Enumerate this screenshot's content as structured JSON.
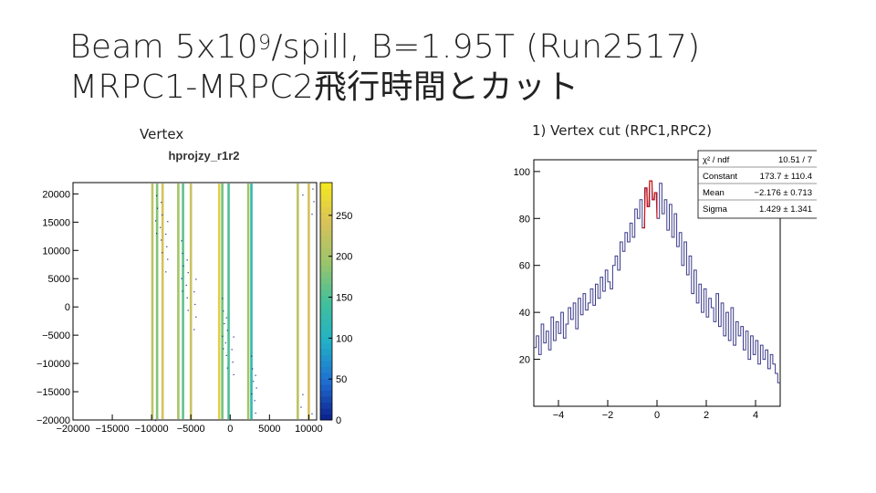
{
  "slide": {
    "title_line1_pre": "Beam 5x10",
    "title_line1_sup": "9",
    "title_line1_post": "/spill, B=1.95T (Run2517)",
    "title_line2": "MRPC1-MRPC2飛行時間とカット",
    "caption_left": "Vertex",
    "caption_right": "1) Vertex cut (RPC1,RPC2)"
  },
  "chart_data": [
    {
      "type": "heatmap",
      "title": "hprojzy_r1r2",
      "xlim": [
        -20000,
        11000
      ],
      "ylim": [
        -20000,
        22000
      ],
      "x_ticks": [
        "−20000",
        "−15000",
        "−10000",
        "−5000",
        "0",
        "5000",
        "10000"
      ],
      "x_tick_values": [
        -20000,
        -15000,
        -10000,
        -5000,
        0,
        5000,
        10000
      ],
      "y_ticks": [
        "20000",
        "15000",
        "10000",
        "5000",
        "0",
        "−5000",
        "−10000",
        "−15000",
        "−20000"
      ],
      "y_tick_values": [
        20000,
        15000,
        10000,
        5000,
        0,
        -5000,
        -10000,
        -15000,
        -20000
      ],
      "z_range": [
        0,
        290
      ],
      "z_ticks": [
        "250",
        "200",
        "150",
        "100",
        "50",
        "0"
      ],
      "z_tick_values": [
        250,
        200,
        150,
        100,
        50,
        0
      ],
      "bands": [
        {
          "x": -9900,
          "z": 220
        },
        {
          "x": -9300,
          "z": 180
        },
        {
          "x": -8600,
          "z": 240
        },
        {
          "x": -6600,
          "z": 200
        },
        {
          "x": -6000,
          "z": 160
        },
        {
          "x": -5000,
          "z": 230
        },
        {
          "x": -1400,
          "z": 260
        },
        {
          "x": -1000,
          "z": 170
        },
        {
          "x": -200,
          "z": 150
        },
        {
          "x": 2300,
          "z": 200
        },
        {
          "x": 2700,
          "z": 120
        },
        {
          "x": 8600,
          "z": 220
        },
        {
          "x": 10000,
          "z": 240
        }
      ],
      "colorscale": [
        "#0b1f8a",
        "#1f6fd1",
        "#21b1c6",
        "#43c09a",
        "#9cc56a",
        "#d8c25a",
        "#f4e81f"
      ]
    },
    {
      "type": "histogram",
      "xlim": [
        -5,
        5
      ],
      "ylim": [
        0,
        105
      ],
      "x_ticks": [
        "−4",
        "−2",
        "0",
        "2",
        "4"
      ],
      "x_tick_values": [
        -4,
        -2,
        0,
        2,
        4
      ],
      "y_ticks": [
        "20",
        "40",
        "60",
        "80",
        "100"
      ],
      "y_tick_values": [
        20,
        40,
        60,
        80,
        100
      ],
      "bin_width": 0.1,
      "x_start": -5,
      "values": [
        25,
        30,
        22,
        35,
        27,
        32,
        24,
        38,
        28,
        36,
        31,
        40,
        29,
        35,
        42,
        37,
        44,
        33,
        46,
        39,
        48,
        41,
        44,
        50,
        43,
        52,
        46,
        55,
        49,
        58,
        53,
        50,
        60,
        64,
        58,
        70,
        66,
        74,
        70,
        78,
        72,
        84,
        80,
        88,
        76,
        93,
        85,
        96,
        88,
        91,
        80,
        95,
        82,
        88,
        75,
        86,
        72,
        82,
        68,
        74,
        60,
        70,
        56,
        64,
        48,
        58,
        44,
        52,
        40,
        50,
        38,
        46,
        42,
        36,
        48,
        34,
        44,
        30,
        40,
        28,
        42,
        26,
        36,
        30,
        34,
        24,
        32,
        20,
        30,
        22,
        28,
        18,
        26,
        20,
        24,
        16,
        22,
        18,
        14,
        10
      ],
      "fit_x": [
        -0.6,
        0.0
      ],
      "stats": {
        "header_label": "χ² / ndf",
        "header_value": "10.51 / 7",
        "rows": [
          {
            "label": "Constant",
            "value": "173.7 ± 110.4"
          },
          {
            "label": "Mean",
            "value": "−2.176 ± 0.713"
          },
          {
            "label": "Sigma",
            "value": "1.429 ± 1.341"
          }
        ]
      },
      "colors": {
        "histogram": "#3a3a8a",
        "fit": "#d01010"
      }
    }
  ]
}
